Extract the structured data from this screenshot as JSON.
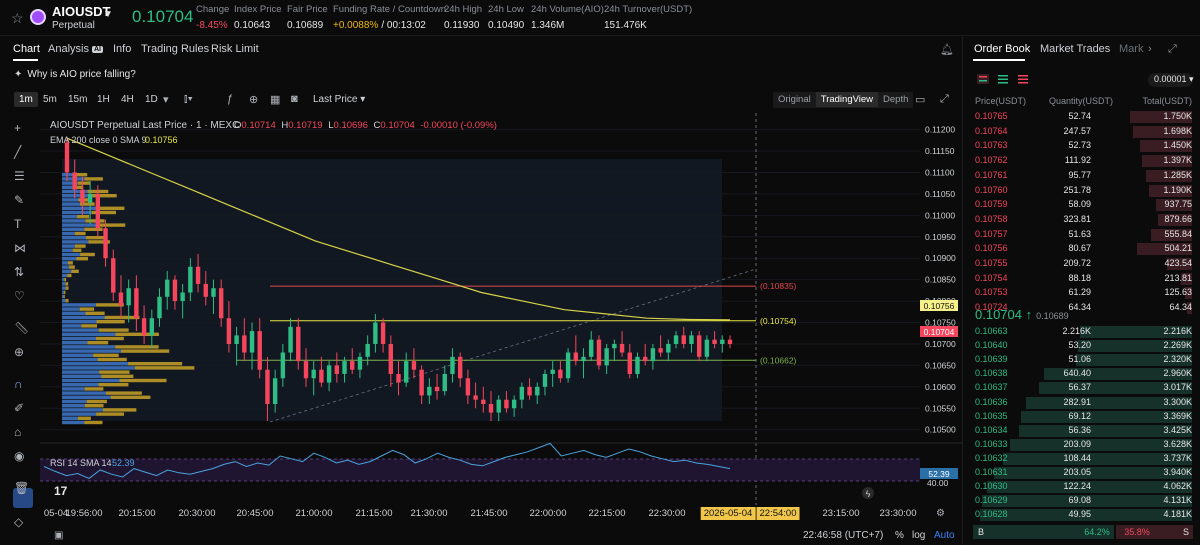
{
  "header": {
    "symbol": "AIOUSDT",
    "type": "Perpetual",
    "last_price": "0.10704",
    "stats": [
      {
        "label": "Change",
        "value": "-8.45%",
        "color": "#f6465d"
      },
      {
        "label": "Index Price",
        "value": "0.10643",
        "color": "#e6e6e6"
      },
      {
        "label": "Fair Price",
        "value": "0.10689",
        "color": "#e6e6e6"
      },
      {
        "label": "Funding Rate / Countdown",
        "value": "+0.0088%",
        "value2": "/ 00:13:02",
        "color": "#f0b90b"
      },
      {
        "label": "24h High",
        "value": "0.11930",
        "color": "#e6e6e6"
      },
      {
        "label": "24h Low",
        "value": "0.10490",
        "color": "#e6e6e6"
      },
      {
        "label": "24h Volume(AIO)",
        "value": "1.346M",
        "color": "#e6e6e6"
      },
      {
        "label": "24h Turnover(USDT)",
        "value": "151.476K",
        "color": "#e6e6e6"
      }
    ]
  },
  "tabs": {
    "chart": "Chart",
    "analysis": "Analysis",
    "ai": "AI",
    "info": "Info",
    "rules": "Trading Rules",
    "risk": "Risk Limit"
  },
  "prompt": "Why is AIO price falling?",
  "toolbar": {
    "timeframes": [
      "1m",
      "5m",
      "15m",
      "1H",
      "4H",
      "1D"
    ],
    "active_tf": "1m",
    "price_type": "Last Price",
    "views": [
      "Original",
      "TradingView",
      "Depth"
    ],
    "active_view": "TradingView"
  },
  "legend": {
    "line1": "AIOUSDT Perpetual Last Price · 1 · MEXC",
    "o": "0.10714",
    "h": "0.10719",
    "l": "0.10696",
    "c": "0.10704",
    "chg": "-0.00010 (-0.09%)",
    "ema_label": "EMA 200 close 0 SMA 9",
    "ema_value": "0.10756"
  },
  "price_axis": {
    "ticks": [
      "0.11200",
      "0.11150",
      "0.11100",
      "0.11050",
      "0.11000",
      "0.10950",
      "0.10900",
      "0.10850",
      "0.10800",
      "0.10750",
      "0.10700",
      "0.10650",
      "0.10600",
      "0.10550",
      "0.10500"
    ],
    "ema_tag": "0.10756",
    "last_tag": "0.10704"
  },
  "levels": [
    {
      "label": "(0.10835)",
      "value": 0.10835,
      "color": "#e0474d"
    },
    {
      "label": "(0.10754)",
      "value": 0.10754,
      "color": "#e6e640"
    },
    {
      "label": "(0.10662)",
      "value": 0.10662,
      "color": "#7fb24b"
    }
  ],
  "rsi": {
    "label": "RSI 14 SMA 14",
    "value": "52.39",
    "tick": "40.00",
    "tag": "52.39"
  },
  "time_axis": {
    "ticks": [
      "05-04",
      "19:56:00",
      "20:15:00",
      "20:30:00",
      "20:45:00",
      "21:00:00",
      "21:15:00",
      "21:30:00",
      "21:45:00",
      "22:00:00",
      "22:15:00",
      "22:30:00",
      "2026-05-04",
      "22:54:00",
      "23:15:00",
      "23:30:00"
    ]
  },
  "bottom": {
    "time": "22:46:58 (UTC+7)",
    "pct": "%",
    "log": "log",
    "auto": "Auto"
  },
  "orderbook": {
    "tabs": [
      "Order Book",
      "Market Trades",
      "Mark"
    ],
    "step": "0.00001",
    "cols": [
      "Price(USDT)",
      "Quantity(USDT)",
      "Total(USDT)"
    ],
    "asks": [
      [
        "0.10765",
        "52.74",
        "1.750K"
      ],
      [
        "0.10764",
        "247.57",
        "1.698K"
      ],
      [
        "0.10763",
        "52.73",
        "1.450K"
      ],
      [
        "0.10762",
        "111.92",
        "1.397K"
      ],
      [
        "0.10761",
        "95.77",
        "1.285K"
      ],
      [
        "0.10760",
        "251.78",
        "1.190K"
      ],
      [
        "0.10759",
        "58.09",
        "937.75"
      ],
      [
        "0.10758",
        "323.81",
        "879.66"
      ],
      [
        "0.10757",
        "51.63",
        "555.84"
      ],
      [
        "0.10756",
        "80.67",
        "504.21"
      ],
      [
        "0.10755",
        "209.72",
        "423.54"
      ],
      [
        "0.10754",
        "88.18",
        "213.81"
      ],
      [
        "0.10753",
        "61.29",
        "125.63"
      ],
      [
        "0.10724",
        "64.34",
        "64.34"
      ]
    ],
    "ask_fill": [
      0.27,
      0.26,
      0.23,
      0.22,
      0.2,
      0.19,
      0.16,
      0.15,
      0.18,
      0.24,
      0.11,
      0.05,
      0.03,
      0.02
    ],
    "mid": {
      "price": "0.10704",
      "arrow": "↑",
      "mark": "0.10689"
    },
    "bids": [
      [
        "0.10663",
        "2.216K",
        "2.216K"
      ],
      [
        "0.10640",
        "53.20",
        "2.269K"
      ],
      [
        "0.10639",
        "51.06",
        "2.320K"
      ],
      [
        "0.10638",
        "640.40",
        "2.960K"
      ],
      [
        "0.10637",
        "56.37",
        "3.017K"
      ],
      [
        "0.10636",
        "282.91",
        "3.300K"
      ],
      [
        "0.10635",
        "69.12",
        "3.369K"
      ],
      [
        "0.10634",
        "56.36",
        "3.425K"
      ],
      [
        "0.10633",
        "203.09",
        "3.628K"
      ],
      [
        "0.10632",
        "108.44",
        "3.737K"
      ],
      [
        "0.10631",
        "203.05",
        "3.940K"
      ],
      [
        "0.10630",
        "122.24",
        "4.062K"
      ],
      [
        "0.10629",
        "69.08",
        "4.131K"
      ],
      [
        "0.10628",
        "49.95",
        "4.181K"
      ]
    ],
    "bid_fill": [
      0.49,
      0.5,
      0.51,
      0.65,
      0.67,
      0.73,
      0.75,
      0.76,
      0.8,
      0.83,
      0.87,
      0.9,
      0.92,
      0.93
    ],
    "ratio": {
      "b": "B",
      "b_pct": "64.2%",
      "s_pct": "35.8%",
      "s": "S",
      "b_frac": 0.642
    }
  },
  "chart_data": {
    "type": "candlestick",
    "ylim": [
      0.1049,
      0.1122
    ],
    "colors": {
      "up": "#2ebd85",
      "down": "#f6465d",
      "ema": "#d8d34a"
    },
    "candles": [
      [
        0.1117,
        0.1118,
        0.1108,
        0.111
      ],
      [
        0.111,
        0.1113,
        0.1104,
        0.1106
      ],
      [
        0.1106,
        0.1109,
        0.11,
        0.1103
      ],
      [
        0.1103,
        0.1108,
        0.1098,
        0.1105
      ],
      [
        0.1105,
        0.1107,
        0.1095,
        0.1097
      ],
      [
        0.1097,
        0.1099,
        0.1088,
        0.109
      ],
      [
        0.109,
        0.1092,
        0.108,
        0.1082
      ],
      [
        0.1082,
        0.1086,
        0.1076,
        0.1079
      ],
      [
        0.1079,
        0.1085,
        0.1075,
        0.1083
      ],
      [
        0.1083,
        0.1086,
        0.1073,
        0.1076
      ],
      [
        0.1076,
        0.1079,
        0.107,
        0.1072
      ],
      [
        0.1072,
        0.1078,
        0.1069,
        0.1076
      ],
      [
        0.1076,
        0.1083,
        0.1074,
        0.1081
      ],
      [
        0.1081,
        0.1087,
        0.1078,
        0.1085
      ],
      [
        0.1085,
        0.1086,
        0.1078,
        0.108
      ],
      [
        0.108,
        0.1084,
        0.1076,
        0.1082
      ],
      [
        0.1082,
        0.109,
        0.108,
        0.1088
      ],
      [
        0.1088,
        0.1091,
        0.1082,
        0.1084
      ],
      [
        0.1084,
        0.1087,
        0.1079,
        0.1081
      ],
      [
        0.1081,
        0.1085,
        0.1077,
        0.1083
      ],
      [
        0.1083,
        0.1085,
        0.1074,
        0.1076
      ],
      [
        0.1076,
        0.108,
        0.1068,
        0.107
      ],
      [
        0.107,
        0.1074,
        0.1065,
        0.1072
      ],
      [
        0.1072,
        0.1076,
        0.1066,
        0.1068
      ],
      [
        0.1068,
        0.1075,
        0.1064,
        0.1073
      ],
      [
        0.1073,
        0.1076,
        0.1062,
        0.1064
      ],
      [
        0.1064,
        0.1067,
        0.1052,
        0.1056
      ],
      [
        0.1056,
        0.1064,
        0.1054,
        0.1062
      ],
      [
        0.1062,
        0.107,
        0.106,
        0.1068
      ],
      [
        0.1068,
        0.1076,
        0.1066,
        0.1074
      ],
      [
        0.1074,
        0.1076,
        0.1064,
        0.1066
      ],
      [
        0.1066,
        0.1069,
        0.106,
        0.1062
      ],
      [
        0.1062,
        0.1066,
        0.1058,
        0.1064
      ],
      [
        0.1064,
        0.1067,
        0.106,
        0.1061
      ],
      [
        0.1061,
        0.1066,
        0.1059,
        0.1065
      ],
      [
        0.1065,
        0.1068,
        0.1061,
        0.1063
      ],
      [
        0.1063,
        0.1067,
        0.1061,
        0.1066
      ],
      [
        0.1066,
        0.1069,
        0.1063,
        0.1064
      ],
      [
        0.1064,
        0.1068,
        0.1062,
        0.1067
      ],
      [
        0.1067,
        0.1072,
        0.1065,
        0.107
      ],
      [
        0.107,
        0.1077,
        0.1068,
        0.1075
      ],
      [
        0.1075,
        0.1076,
        0.1068,
        0.107
      ],
      [
        0.107,
        0.1072,
        0.106,
        0.1063
      ],
      [
        0.1063,
        0.1066,
        0.1058,
        0.1061
      ],
      [
        0.1061,
        0.1068,
        0.106,
        0.1066
      ],
      [
        0.1066,
        0.1069,
        0.1062,
        0.1064
      ],
      [
        0.1064,
        0.1065,
        0.1056,
        0.1058
      ],
      [
        0.1058,
        0.1062,
        0.1056,
        0.106
      ],
      [
        0.106,
        0.1063,
        0.1057,
        0.1059
      ],
      [
        0.1059,
        0.1065,
        0.1058,
        0.1063
      ],
      [
        0.1063,
        0.1069,
        0.1061,
        0.1067
      ],
      [
        0.1067,
        0.1068,
        0.106,
        0.1062
      ],
      [
        0.1062,
        0.1064,
        0.1056,
        0.1058
      ],
      [
        0.1058,
        0.1061,
        0.1055,
        0.1057
      ],
      [
        0.1057,
        0.106,
        0.1054,
        0.1056
      ],
      [
        0.1056,
        0.1059,
        0.1052,
        0.1054
      ],
      [
        0.1054,
        0.1058,
        0.1052,
        0.1057
      ],
      [
        0.1057,
        0.1059,
        0.1054,
        0.1055
      ],
      [
        0.1055,
        0.1058,
        0.1053,
        0.1057
      ],
      [
        0.1057,
        0.1061,
        0.1055,
        0.106
      ],
      [
        0.106,
        0.1062,
        0.1057,
        0.1058
      ],
      [
        0.1058,
        0.1061,
        0.1056,
        0.106
      ],
      [
        0.106,
        0.1064,
        0.1058,
        0.1063
      ],
      [
        0.1063,
        0.1066,
        0.106,
        0.1064
      ],
      [
        0.1064,
        0.1066,
        0.1061,
        0.1062
      ],
      [
        0.1062,
        0.1069,
        0.1061,
        0.1068
      ],
      [
        0.1068,
        0.1072,
        0.1065,
        0.1066
      ],
      [
        0.1066,
        0.1069,
        0.1062,
        0.1067
      ],
      [
        0.1067,
        0.1073,
        0.1066,
        0.1071
      ],
      [
        0.1071,
        0.1072,
        0.1064,
        0.1065
      ],
      [
        0.1065,
        0.107,
        0.1063,
        0.1069
      ],
      [
        0.1069,
        0.1071,
        0.1066,
        0.107
      ],
      [
        0.107,
        0.1073,
        0.1067,
        0.1068
      ],
      [
        0.1068,
        0.107,
        0.1062,
        0.1063
      ],
      [
        0.1063,
        0.1068,
        0.1062,
        0.1067
      ],
      [
        0.1067,
        0.107,
        0.1065,
        0.1066
      ],
      [
        0.1066,
        0.107,
        0.1064,
        0.1069
      ],
      [
        0.1069,
        0.1072,
        0.1067,
        0.1068
      ],
      [
        0.1068,
        0.1071,
        0.1066,
        0.107
      ],
      [
        0.107,
        0.1073,
        0.1069,
        0.1072
      ],
      [
        0.1072,
        0.1074,
        0.1069,
        0.107
      ],
      [
        0.107,
        0.1073,
        0.1068,
        0.1072
      ],
      [
        0.1072,
        0.1073,
        0.1066,
        0.1067
      ],
      [
        0.1067,
        0.1072,
        0.1066,
        0.1071
      ],
      [
        0.1071,
        0.1073,
        0.1069,
        0.107
      ],
      [
        0.107,
        0.1072,
        0.1068,
        0.1071
      ],
      [
        0.1071,
        0.1072,
        0.1069,
        0.107
      ]
    ],
    "ema": [
      0.1118,
      0.1114,
      0.111,
      0.1106,
      0.1102,
      0.1098,
      0.1094,
      0.1091,
      0.1088,
      0.1085,
      0.1082,
      0.108,
      0.1078,
      0.1077,
      0.1076,
      0.10757,
      0.10756
    ],
    "rsi": [
      55,
      48,
      42,
      45,
      38,
      50,
      44,
      40,
      52,
      47,
      42,
      50,
      46,
      44,
      48,
      52,
      58,
      62,
      55,
      60,
      57,
      70,
      66,
      62,
      74,
      68,
      60,
      64,
      58,
      62,
      70,
      78,
      72,
      60,
      66,
      74,
      68,
      64,
      58,
      56,
      62,
      68,
      72,
      76,
      82,
      88,
      70,
      74,
      78,
      72,
      68,
      74,
      80,
      76,
      70,
      66,
      62,
      64,
      60,
      58,
      55,
      52
    ]
  }
}
